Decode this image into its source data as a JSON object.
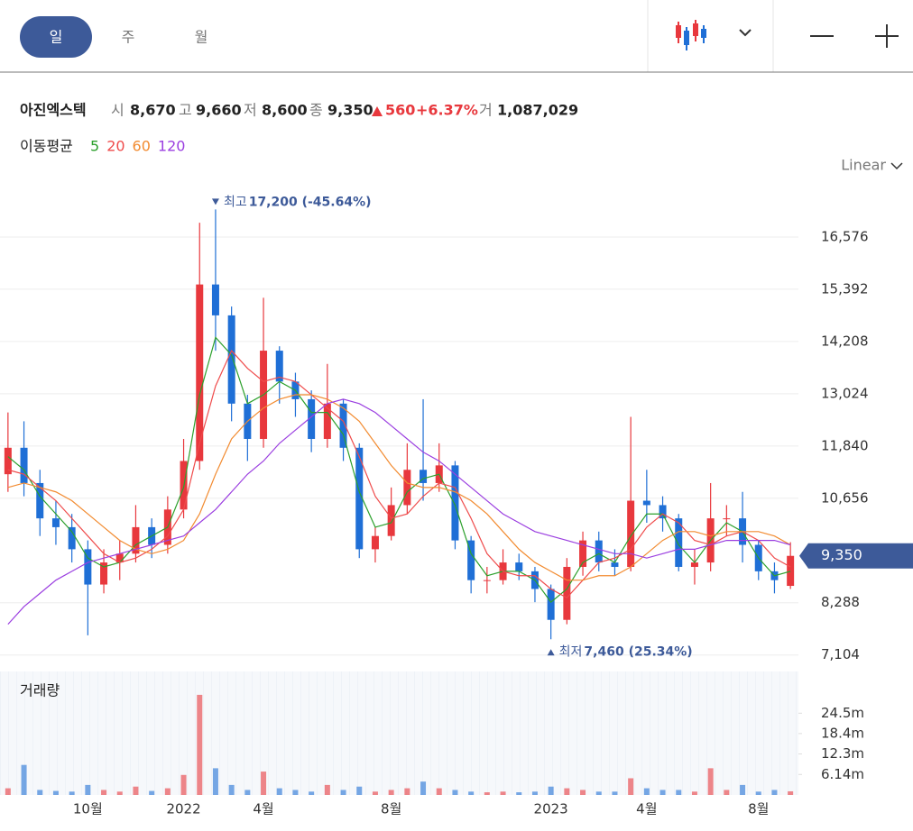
{
  "tabs": [
    "일",
    "주",
    "월"
  ],
  "stock": {
    "name": "아진엑스텍",
    "fields": [
      {
        "label": "시",
        "value": "8,670"
      },
      {
        "label": "고",
        "value": "9,660"
      },
      {
        "label": "저",
        "value": "8,600"
      },
      {
        "label": "종",
        "value": "9,350"
      }
    ],
    "change": "560",
    "change_pct": "+6.37%",
    "volume_label": "거",
    "volume": "1,087,029"
  },
  "ma_label": "이동평균",
  "scale": "Linear",
  "chart_data": {
    "type": "candlestick",
    "categories": [
      null,
      null,
      null,
      null,
      null,
      "10월",
      null,
      null,
      null,
      null,
      null,
      "2022",
      null,
      null,
      null,
      null,
      "4월",
      null,
      null,
      null,
      null,
      null,
      null,
      null,
      "8월",
      null,
      null,
      null,
      null,
      null,
      null,
      null,
      null,
      null,
      "2023",
      null,
      null,
      null,
      null,
      null,
      "4월",
      null,
      null,
      null,
      null,
      null,
      null,
      "8월",
      null,
      null
    ],
    "open": [
      11200,
      11800,
      11000,
      10200,
      10000,
      9500,
      8700,
      9200,
      9400,
      10000,
      9600,
      10400,
      11500,
      15500,
      14800,
      12800,
      12000,
      14000,
      13300,
      12900,
      12000,
      12800,
      11800,
      9500,
      9800,
      10500,
      11300,
      11000,
      11400,
      9700,
      8800,
      8800,
      9200,
      9000,
      8600,
      7900,
      9100,
      9700,
      9200,
      9100,
      10600,
      10500,
      10200,
      9100,
      9200,
      10200,
      10200,
      9600,
      9000,
      8670
    ],
    "high": [
      12600,
      12400,
      11300,
      10600,
      10300,
      9700,
      9500,
      9700,
      10500,
      10200,
      10700,
      12000,
      16900,
      17200,
      15000,
      13000,
      15200,
      14100,
      13500,
      13100,
      13700,
      12900,
      11900,
      10000,
      10900,
      11900,
      12900,
      11900,
      11500,
      9800,
      9100,
      9500,
      9400,
      9100,
      8700,
      9300,
      9900,
      9900,
      9500,
      12500,
      11300,
      10700,
      10300,
      9500,
      11000,
      10500,
      10800,
      9700,
      9200,
      9660
    ],
    "low": [
      10800,
      10700,
      9800,
      9600,
      9200,
      7550,
      8500,
      8800,
      9200,
      9300,
      9400,
      10200,
      11300,
      14000,
      12400,
      11500,
      11800,
      12800,
      12500,
      11700,
      11800,
      11500,
      9300,
      9200,
      9700,
      10300,
      10600,
      10800,
      9500,
      8500,
      8500,
      8700,
      8800,
      8300,
      7460,
      7800,
      8900,
      9000,
      8900,
      9000,
      10100,
      9900,
      9000,
      8700,
      9000,
      9800,
      9200,
      8800,
      8500,
      8600
    ],
    "close": [
      11800,
      11000,
      10200,
      10000,
      9500,
      8700,
      9200,
      9400,
      10000,
      9600,
      10400,
      11500,
      15500,
      14800,
      12800,
      12000,
      14000,
      13300,
      12900,
      12000,
      12800,
      11800,
      9500,
      9800,
      10500,
      11300,
      11000,
      11400,
      9700,
      8800,
      8800,
      9200,
      9000,
      8600,
      7900,
      9100,
      9700,
      9200,
      9100,
      10600,
      10500,
      10200,
      9100,
      9200,
      10200,
      10200,
      9600,
      9000,
      8800,
      9350
    ],
    "up_color": "#e8383d",
    "down_color": "#1f6fd6",
    "ylim": [
      6812,
      17882
    ],
    "yticks": [
      {
        "value": 7104,
        "label": "7,104"
      },
      {
        "value": 8288,
        "label": "8,288"
      },
      {
        "value": 10656,
        "label": "10,656"
      },
      {
        "value": 11840,
        "label": "11,840"
      },
      {
        "value": 13024,
        "label": "13,024"
      },
      {
        "value": 14208,
        "label": "14,208"
      },
      {
        "value": 15392,
        "label": "15,392"
      },
      {
        "value": 16576,
        "label": "16,576"
      }
    ],
    "ma": [
      {
        "name": "5",
        "color": "#2ca02c",
        "values": [
          11600,
          11300,
          10700,
          10300,
          9900,
          9300,
          9100,
          9200,
          9600,
          9800,
          10000,
          10900,
          13000,
          14300,
          13900,
          12800,
          13000,
          13300,
          13100,
          12600,
          12600,
          12100,
          10800,
          10000,
          10100,
          10800,
          11100,
          11200,
          10500,
          9400,
          8900,
          9000,
          9000,
          8800,
          8300,
          8600,
          9200,
          9400,
          9200,
          9800,
          10300,
          10300,
          9600,
          9200,
          9700,
          10100,
          9900,
          9300,
          8900,
          9000
        ]
      },
      {
        "name": "20",
        "color": "#ef4b4b",
        "values": [
          11300,
          11200,
          10900,
          10600,
          10200,
          9800,
          9400,
          9200,
          9300,
          9500,
          9800,
          10400,
          11900,
          13200,
          14000,
          13600,
          13300,
          13400,
          13300,
          13000,
          12700,
          12400,
          11600,
          10700,
          10200,
          10300,
          10700,
          11000,
          10900,
          10200,
          9400,
          9000,
          8900,
          8900,
          8600,
          8400,
          8800,
          9200,
          9300,
          9500,
          10000,
          10300,
          10100,
          9700,
          9600,
          9800,
          9900,
          9700,
          9300,
          9100
        ]
      },
      {
        "name": "60",
        "color": "#f28b30",
        "values": [
          10900,
          11000,
          10900,
          10800,
          10600,
          10300,
          10000,
          9700,
          9500,
          9400,
          9500,
          9700,
          10300,
          11200,
          12000,
          12400,
          12700,
          12900,
          13000,
          13000,
          12900,
          12700,
          12400,
          11900,
          11400,
          11000,
          10900,
          10900,
          10800,
          10600,
          10300,
          9900,
          9500,
          9200,
          9000,
          8800,
          8800,
          8900,
          8900,
          9100,
          9400,
          9700,
          9900,
          9900,
          9800,
          9900,
          9900,
          9900,
          9800,
          9600
        ]
      },
      {
        "name": "120",
        "color": "#9b3fe0",
        "values": [
          7800,
          8200,
          8500,
          8800,
          9000,
          9200,
          9300,
          9400,
          9500,
          9600,
          9700,
          9800,
          10100,
          10400,
          10800,
          11200,
          11500,
          11900,
          12200,
          12500,
          12800,
          12900,
          12800,
          12600,
          12300,
          12000,
          11700,
          11500,
          11200,
          10900,
          10600,
          10300,
          10100,
          9900,
          9800,
          9700,
          9600,
          9500,
          9400,
          9400,
          9300,
          9400,
          9500,
          9500,
          9600,
          9700,
          9700,
          9700,
          9700,
          9600
        ]
      }
    ],
    "high_annotation": {
      "label": "최고",
      "text": "17,200 (-45.64%)"
    },
    "low_annotation": {
      "label": "최저",
      "text": "7,460 (25.34%)"
    },
    "volume_label": "거래량",
    "volume": [
      2000000,
      9000000,
      1500000,
      1200000,
      1000000,
      3000000,
      1500000,
      1000000,
      2500000,
      1200000,
      2000000,
      6000000,
      30000000,
      8000000,
      3000000,
      1500000,
      7000000,
      2000000,
      1500000,
      1000000,
      3000000,
      1500000,
      2500000,
      1000000,
      1500000,
      2000000,
      4000000,
      2000000,
      1500000,
      1000000,
      800000,
      1000000,
      800000,
      1000000,
      2500000,
      2000000,
      1500000,
      1000000,
      1000000,
      5000000,
      2000000,
      1500000,
      1500000,
      1000000,
      8000000,
      1500000,
      3000000,
      1000000,
      1500000,
      1087029
    ],
    "volume_lim": [
      0,
      37000000
    ],
    "volume_ticks": [
      {
        "value": 6140000,
        "label": "6.14m"
      },
      {
        "value": 12300000,
        "label": "12.3m"
      },
      {
        "value": 18400000,
        "label": "18.4m"
      },
      {
        "value": 24500000,
        "label": "24.5m"
      }
    ]
  }
}
